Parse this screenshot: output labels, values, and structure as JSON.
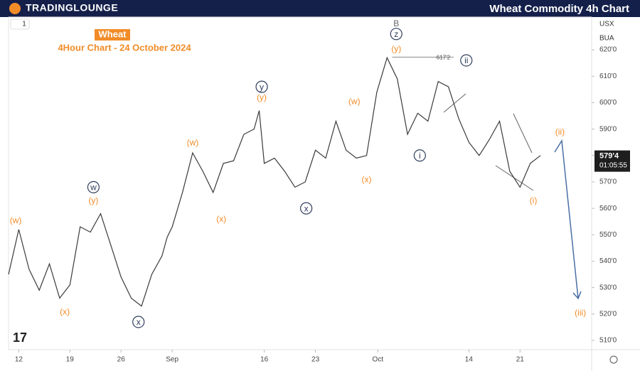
{
  "header": {
    "logo": "TRADINGLOUNGE",
    "title": "Wheat Commodity 4h Chart"
  },
  "toolbar": {
    "interval": "1",
    "currency": "USX",
    "exchange": "BUA"
  },
  "chart_data": {
    "type": "line",
    "title": "Wheat",
    "subtitle": "4Hour Chart - 24 October 2024",
    "color": "#3a3a3a",
    "grid": false,
    "x": [
      -1,
      0,
      1,
      2,
      3,
      4,
      5,
      6,
      7,
      8,
      9,
      10,
      11,
      12,
      13,
      14,
      14.5,
      15,
      16,
      17,
      18,
      19,
      20,
      21,
      22,
      23,
      23.5,
      24,
      25,
      26,
      27,
      28,
      29,
      30,
      31,
      32,
      33,
      34,
      35,
      36,
      37,
      38,
      39,
      40,
      41,
      42,
      43,
      44,
      45,
      46,
      47,
      48,
      49,
      50,
      51
    ],
    "values": [
      535,
      552,
      537,
      529,
      539,
      526,
      531,
      553,
      551,
      558,
      546,
      534,
      526,
      523,
      535,
      542,
      549,
      553,
      566,
      581,
      574,
      566,
      577,
      578,
      588,
      590,
      597,
      577,
      579,
      574,
      568,
      570,
      582,
      579,
      593,
      582,
      579,
      580,
      604,
      617,
      609,
      588,
      596,
      593,
      608,
      606,
      594,
      585,
      580,
      586,
      593,
      574,
      568,
      577,
      580
    ],
    "xlim": [
      -1,
      56
    ],
    "ylim": [
      506.5,
      632.4
    ],
    "xticks": [
      {
        "value": 0,
        "label": "12"
      },
      {
        "value": 5,
        "label": "19"
      },
      {
        "value": 10,
        "label": "26"
      },
      {
        "value": 15,
        "label": "Sep"
      },
      {
        "value": 24,
        "label": "16"
      },
      {
        "value": 29,
        "label": "23"
      },
      {
        "value": 35.1,
        "label": "Oct"
      },
      {
        "value": 44,
        "label": "14"
      },
      {
        "value": 49,
        "label": "21"
      }
    ],
    "yticks": [
      {
        "value": 510,
        "label": "510'0"
      },
      {
        "value": 520,
        "label": "520'0"
      },
      {
        "value": 530,
        "label": "530'0"
      },
      {
        "value": 540,
        "label": "540'0"
      },
      {
        "value": 550,
        "label": "550'0"
      },
      {
        "value": 560,
        "label": "560'0"
      },
      {
        "value": 570,
        "label": "570'0"
      },
      {
        "value": 580,
        "label": "580'0"
      },
      {
        "value": 590,
        "label": "590'0"
      },
      {
        "value": 600,
        "label": "600'0"
      },
      {
        "value": 610,
        "label": "610'0"
      },
      {
        "value": 620,
        "label": "620'0"
      }
    ],
    "last_price": {
      "value": 579.5,
      "label": "579'4"
    },
    "countdown": "01:05:55",
    "level": {
      "value": 617.25,
      "label": "617'2",
      "x": [
        36.5,
        42.5
      ]
    },
    "annotations": [
      {
        "text": "(w)",
        "x": -0.3,
        "y": 555.5,
        "style": "orange"
      },
      {
        "text": "(x)",
        "x": 4.5,
        "y": 521,
        "style": "orange"
      },
      {
        "text": "w",
        "x": 7.3,
        "y": 568,
        "style": "circle"
      },
      {
        "text": "(y)",
        "x": 7.3,
        "y": 563,
        "style": "orange"
      },
      {
        "text": "x",
        "x": 11.7,
        "y": 517,
        "style": "circle"
      },
      {
        "text": "(w)",
        "x": 17,
        "y": 585,
        "style": "orange"
      },
      {
        "text": "(x)",
        "x": 19.8,
        "y": 556,
        "style": "orange"
      },
      {
        "text": "y",
        "x": 23.75,
        "y": 606,
        "style": "circle"
      },
      {
        "text": "(y)",
        "x": 23.75,
        "y": 602,
        "style": "orange"
      },
      {
        "text": "x",
        "x": 28.1,
        "y": 560,
        "style": "circle"
      },
      {
        "text": "(w)",
        "x": 32.8,
        "y": 600.6,
        "style": "orange"
      },
      {
        "text": "(x)",
        "x": 34,
        "y": 571,
        "style": "orange"
      },
      {
        "text": "B",
        "x": 36.9,
        "y": 630,
        "style": "plain"
      },
      {
        "text": "z",
        "x": 36.9,
        "y": 626,
        "style": "circle"
      },
      {
        "text": "(y)",
        "x": 36.9,
        "y": 620.5,
        "style": "orange"
      },
      {
        "text": "ii",
        "x": 43.75,
        "y": 616,
        "style": "circle"
      },
      {
        "text": "i",
        "x": 39.2,
        "y": 580,
        "style": "circle"
      },
      {
        "text": "(i)",
        "x": 50.3,
        "y": 563,
        "style": "orange"
      },
      {
        "text": "(ii)",
        "x": 52.9,
        "y": 589,
        "style": "orange"
      },
      {
        "text": "(iii)",
        "x": 54.9,
        "y": 520.5,
        "style": "orange"
      }
    ]
  }
}
